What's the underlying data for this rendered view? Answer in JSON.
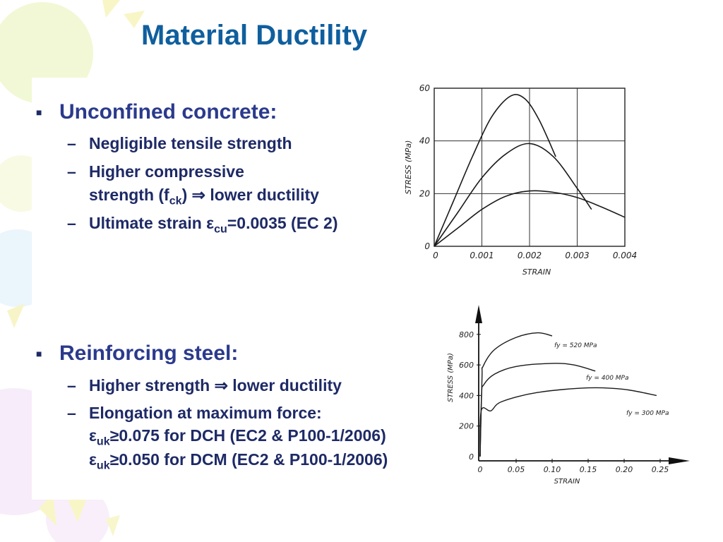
{
  "title": "Material Ductility",
  "concrete": {
    "heading": "Unconfined concrete:",
    "items": [
      "Negligible tensile strength",
      "Higher compressive",
      "strength (f",
      "ck",
      ") ⇒ lower ductility",
      "Ultimate strain  ε",
      "cu",
      "=0.0035 (EC 2)"
    ]
  },
  "steel": {
    "heading": "Reinforcing steel:",
    "items": [
      "Higher strength ⇒ lower ductility",
      "Elongation at maximum force:",
      "ε",
      "uk",
      "≥0.075 for DCH (EC2 & P100-1/2006)",
      "ε",
      "uk",
      "≥0.050 for DCM (EC2 & P100-1/2006)"
    ]
  },
  "chart_data": [
    {
      "type": "line",
      "xlabel": "STRAIN",
      "ylabel": "STRESS (MPa)",
      "xlim": [
        0,
        0.004
      ],
      "ylim": [
        0,
        60
      ],
      "xticks": [
        "0",
        "0.001",
        "0.002",
        "0.003",
        "0.004"
      ],
      "yticks": [
        "0",
        "20",
        "40",
        "60"
      ],
      "grid": true,
      "series": [
        {
          "x": [
            0,
            0.0004,
            0.0008,
            0.0012,
            0.0016,
            0.0019,
            0.0022,
            0.00255
          ],
          "y": [
            0,
            17,
            34,
            49,
            57,
            56,
            48,
            34
          ]
        },
        {
          "x": [
            0,
            0.0005,
            0.001,
            0.0015,
            0.002,
            0.0025,
            0.003,
            0.0033
          ],
          "y": [
            0,
            13,
            26,
            35,
            39,
            34,
            22,
            14
          ]
        },
        {
          "x": [
            0,
            0.0005,
            0.001,
            0.0015,
            0.002,
            0.0025,
            0.003,
            0.0035,
            0.004
          ],
          "y": [
            0,
            7,
            14,
            19,
            21,
            20.5,
            18.5,
            15,
            11
          ]
        }
      ]
    },
    {
      "type": "line",
      "xlabel": "STRAIN",
      "ylabel": "STRESS (MPa)",
      "xlim": [
        0,
        0.28
      ],
      "ylim": [
        0,
        900
      ],
      "xticks": [
        "0",
        "0.05",
        "0.10",
        "0.15",
        "0.20",
        "0.25"
      ],
      "yticks": [
        "0",
        "200",
        "400",
        "600",
        "800"
      ],
      "grid": false,
      "series": [
        {
          "name": "fy = 520 MPa",
          "x": [
            0,
            0.0026,
            0.004,
            0.02,
            0.05,
            0.08,
            0.1
          ],
          "y": [
            0,
            520,
            590,
            700,
            780,
            810,
            790
          ]
        },
        {
          "name": "fy = 400 MPa",
          "x": [
            0,
            0.002,
            0.005,
            0.02,
            0.05,
            0.1,
            0.13,
            0.16
          ],
          "y": [
            0,
            400,
            470,
            540,
            590,
            610,
            600,
            560
          ]
        },
        {
          "name": "fy = 300 MPa",
          "x": [
            0,
            0.0015,
            0.015,
            0.03,
            0.08,
            0.15,
            0.2,
            0.245
          ],
          "y": [
            0,
            300,
            300,
            360,
            420,
            450,
            440,
            400
          ]
        }
      ],
      "annotations": [
        "fy = 520 MPa",
        "fy = 400 MPa",
        "fy = 300 MPa"
      ]
    }
  ]
}
